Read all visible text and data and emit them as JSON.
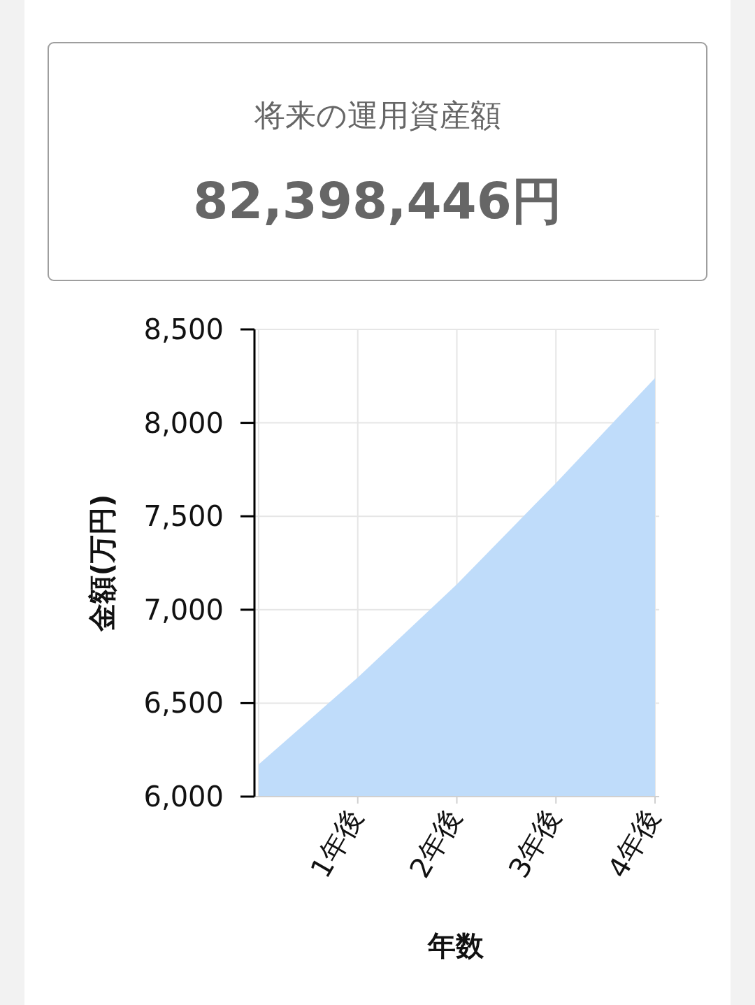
{
  "chart_data": {
    "type": "area",
    "title": "将来の運用資産額",
    "subtitle": "82,398,446円",
    "xlabel": "年数",
    "ylabel": "金額(万円)",
    "categories": [
      null,
      "1年後",
      "2年後",
      "3年後",
      "4年後"
    ],
    "series": [
      {
        "color": "#bfdcfa",
        "values": [
          6172,
          6637,
          7136,
          7678,
          8240
        ]
      }
    ],
    "ylim": [
      6000,
      8500
    ],
    "yticks": [
      {
        "value": 6000,
        "label": "6,000"
      },
      {
        "value": 6500,
        "label": "6,500"
      },
      {
        "value": 7000,
        "label": "7,000"
      },
      {
        "value": 7500,
        "label": "7,500"
      },
      {
        "value": 8000,
        "label": "8,000"
      },
      {
        "value": 8500,
        "label": "8,500"
      }
    ],
    "grid": true
  }
}
